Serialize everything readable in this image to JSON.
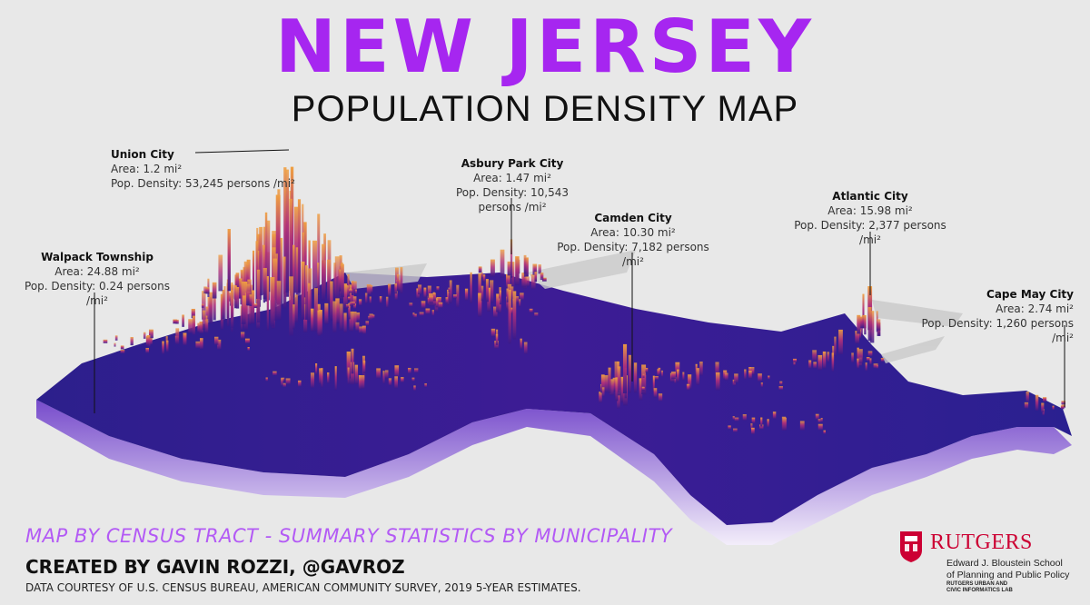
{
  "title": "NEW JERSEY",
  "subtitle": "POPULATION DENSITY MAP",
  "colors": {
    "title": "#a626f0",
    "low_density": "#3a1a8a",
    "high_density": "#f0a040",
    "subtitle_italic": "#b35af5",
    "rutgers_red": "#cc0033"
  },
  "callouts": [
    {
      "name": "Union City",
      "area": "Area: 1.2 mi²",
      "density": "Pop. Density: 53,245 persons /mi²"
    },
    {
      "name": "Asbury Park City",
      "area": "Area: 1.47 mi²",
      "density": "Pop. Density: 10,543 persons /mi²"
    },
    {
      "name": "Camden City",
      "area": "Area: 10.30 mi²",
      "density": "Pop. Density: 7,182 persons /mi²"
    },
    {
      "name": "Atlantic City",
      "area": "Area: 15.98 mi²",
      "density": "Pop. Density: 2,377 persons /mi²"
    },
    {
      "name": "Walpack Township",
      "area": "Area: 24.88 mi²",
      "density": "Pop. Density: 0.24 persons /mi²"
    },
    {
      "name": "Cape May City",
      "area": "Area: 2.74 mi²",
      "density": "Pop. Density: 1,260 persons /mi²"
    }
  ],
  "footer": {
    "method": "MAP BY CENSUS TRACT - SUMMARY STATISTICS BY MUNICIPALITY",
    "credit": "CREATED BY GAVIN ROZZI, @GAVROZ",
    "source": "DATA COURTESY OF U.S. CENSUS BUREAU, AMERICAN COMMUNITY SURVEY, 2019 5-YEAR ESTIMATES."
  },
  "logo": {
    "word": "RUTGERS",
    "line1": "Edward J. Bloustein School",
    "line2": "of Planning and Public Policy",
    "line3": "RUTGERS URBAN AND",
    "line4": "CIVIC INFORMATICS LAB"
  }
}
